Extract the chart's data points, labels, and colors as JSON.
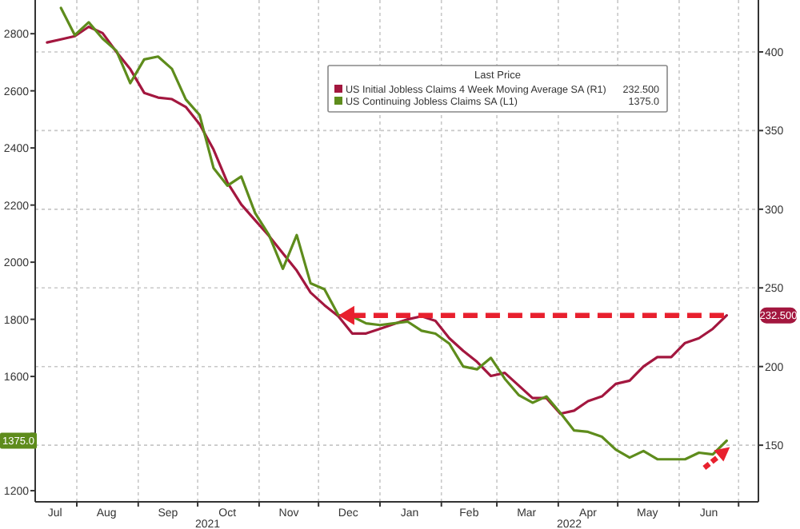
{
  "chart_data": {
    "type": "line",
    "x": [
      "2021-07-17",
      "2021-07-24",
      "2021-07-31",
      "2021-08-07",
      "2021-08-14",
      "2021-08-21",
      "2021-08-28",
      "2021-09-04",
      "2021-09-11",
      "2021-09-18",
      "2021-09-25",
      "2021-10-02",
      "2021-10-09",
      "2021-10-16",
      "2021-10-23",
      "2021-10-30",
      "2021-11-06",
      "2021-11-13",
      "2021-11-20",
      "2021-11-27",
      "2021-12-04",
      "2021-12-11",
      "2021-12-18",
      "2021-12-25",
      "2022-01-01",
      "2022-01-08",
      "2022-01-15",
      "2022-01-22",
      "2022-01-29",
      "2022-02-05",
      "2022-02-12",
      "2022-02-19",
      "2022-02-26",
      "2022-03-05",
      "2022-03-12",
      "2022-03-19",
      "2022-03-26",
      "2022-04-02",
      "2022-04-09",
      "2022-04-16",
      "2022-04-23",
      "2022-04-30",
      "2022-05-07",
      "2022-05-14",
      "2022-05-21",
      "2022-05-28",
      "2022-06-04",
      "2022-06-11",
      "2022-06-18",
      "2022-06-25"
    ],
    "series": [
      {
        "name": "US Initial Jobless Claims 4 Week Moving Average SA  (R1)",
        "color": "#a3173f",
        "axis": "y2",
        "values": [
          406,
          408,
          410,
          416,
          412,
          400,
          389,
          374,
          371,
          370,
          365,
          354,
          338,
          317,
          303,
          293,
          283,
          272,
          261,
          247,
          239,
          232,
          221,
          221,
          224,
          227,
          230,
          232,
          229,
          218,
          210,
          203,
          194,
          196,
          188,
          180,
          180,
          170,
          172,
          178,
          181,
          189,
          191,
          200,
          206,
          206,
          215,
          218,
          224,
          232.5
        ]
      },
      {
        "name": "US Continuing Jobless Claims SA  (L1)",
        "color": "#5e8c1c",
        "values": [
          null,
          2890,
          2795,
          2840,
          2783,
          2740,
          2627,
          2710,
          2720,
          2677,
          2570,
          2515,
          2330,
          2268,
          2300,
          2172,
          2095,
          1977,
          2095,
          1926,
          1905,
          1815,
          1810,
          1786,
          1780,
          1786,
          1792,
          1760,
          1750,
          1715,
          1635,
          1625,
          1665,
          1592,
          1535,
          1508,
          1530,
          1473,
          1411,
          1406,
          1389,
          1344,
          1316,
          1339,
          1310,
          1310,
          1310,
          1333,
          1327,
          1375
        ]
      }
    ],
    "xlim": [
      "2021-07-11",
      "2022-07-11"
    ],
    "xticks": [
      {
        "value": "2021-08-01",
        "label": null
      },
      {
        "value": "2021-09-01",
        "label": null
      },
      {
        "value": "2021-10-01",
        "label": null
      },
      {
        "value": "2021-11-01",
        "label": null
      },
      {
        "value": "2021-12-01",
        "label": null
      },
      {
        "value": "2022-01-01",
        "label": null
      },
      {
        "value": "2022-02-01",
        "label": null
      },
      {
        "value": "2022-03-01",
        "label": null
      },
      {
        "value": "2022-04-01",
        "label": null
      },
      {
        "value": "2022-05-01",
        "label": null
      },
      {
        "value": "2022-06-01",
        "label": null
      },
      {
        "value": "2022-07-01",
        "label": null
      },
      {
        "value": "2021-07-21",
        "label": "Jul"
      },
      {
        "value": "2021-08-16",
        "label": "Aug"
      },
      {
        "value": "2021-09-16",
        "label": "Sep"
      },
      {
        "value": "2021-10-16",
        "label": "Oct"
      },
      {
        "value": "2021-11-16",
        "label": "Nov"
      },
      {
        "value": "2021-12-16",
        "label": "Dec"
      },
      {
        "value": "2022-01-16",
        "label": "Jan"
      },
      {
        "value": "2022-02-15",
        "label": "Feb"
      },
      {
        "value": "2022-03-16",
        "label": "Mar"
      },
      {
        "value": "2022-04-16",
        "label": "Apr"
      },
      {
        "value": "2022-05-16",
        "label": "May"
      },
      {
        "value": "2022-06-16",
        "label": "Jun"
      }
    ],
    "ylim": [
      1161,
      2918
    ],
    "yticks": [
      1200,
      {
        "value": 1400,
        "label": null
      },
      1600,
      1800,
      2000,
      2200,
      2400,
      2600,
      2800
    ],
    "y2lim": [
      114,
      433
    ],
    "y2ticks": [
      150,
      200,
      250,
      300,
      350,
      400
    ],
    "ref_lines": [
      {
        "axis": "y2",
        "value": 232.5,
        "color": "#e8202e",
        "line_style": "dashed"
      }
    ],
    "annotations": [
      "232.500",
      "1375.0",
      "2021",
      "2022"
    ],
    "legend_title": "Last Price",
    "legend": "top right",
    "grid": true
  }
}
